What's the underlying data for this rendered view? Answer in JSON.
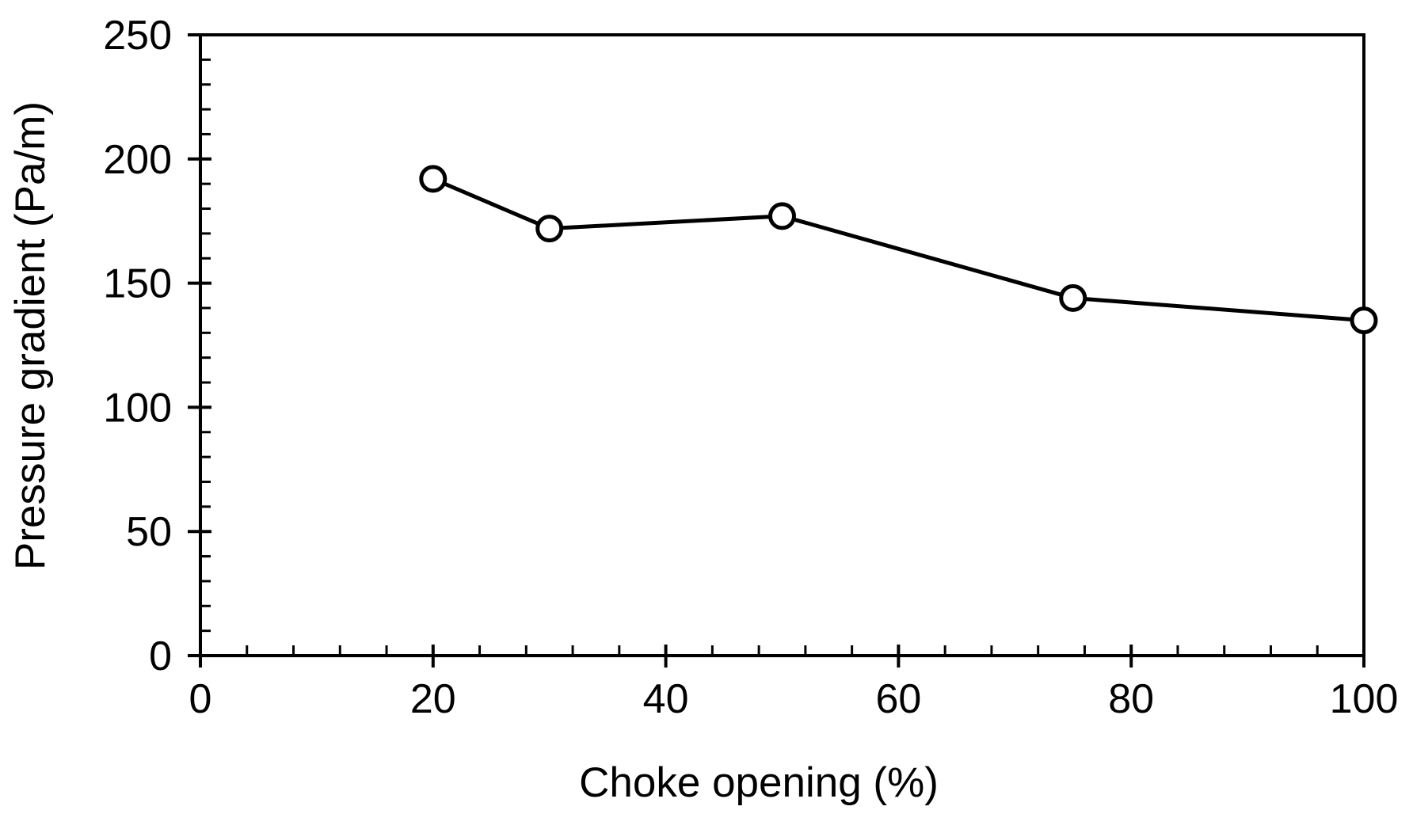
{
  "figure": {
    "background": "#ffffff",
    "text_color": "#000000"
  },
  "chart_data": {
    "type": "line",
    "title": "",
    "xlabel": "Choke opening (%)",
    "ylabel": "Pressure gradient (Pa/m)",
    "x": [
      20,
      30,
      50,
      75,
      100
    ],
    "series": [
      {
        "name": "Pressure gradient",
        "values": [
          192,
          172,
          177,
          144,
          135
        ]
      }
    ],
    "xlim": [
      0,
      100
    ],
    "ylim": [
      0,
      250
    ],
    "xticks": [
      0,
      20,
      40,
      60,
      80,
      100
    ],
    "yticks": [
      0,
      50,
      100,
      150,
      200,
      250
    ],
    "x_minor_interval": 4,
    "y_minor_interval": 10,
    "grid": false,
    "legend": "none",
    "line_color": "#000000",
    "axis_color": "#000000",
    "marker": "circle-open",
    "marker_fill": "#ffffff"
  }
}
